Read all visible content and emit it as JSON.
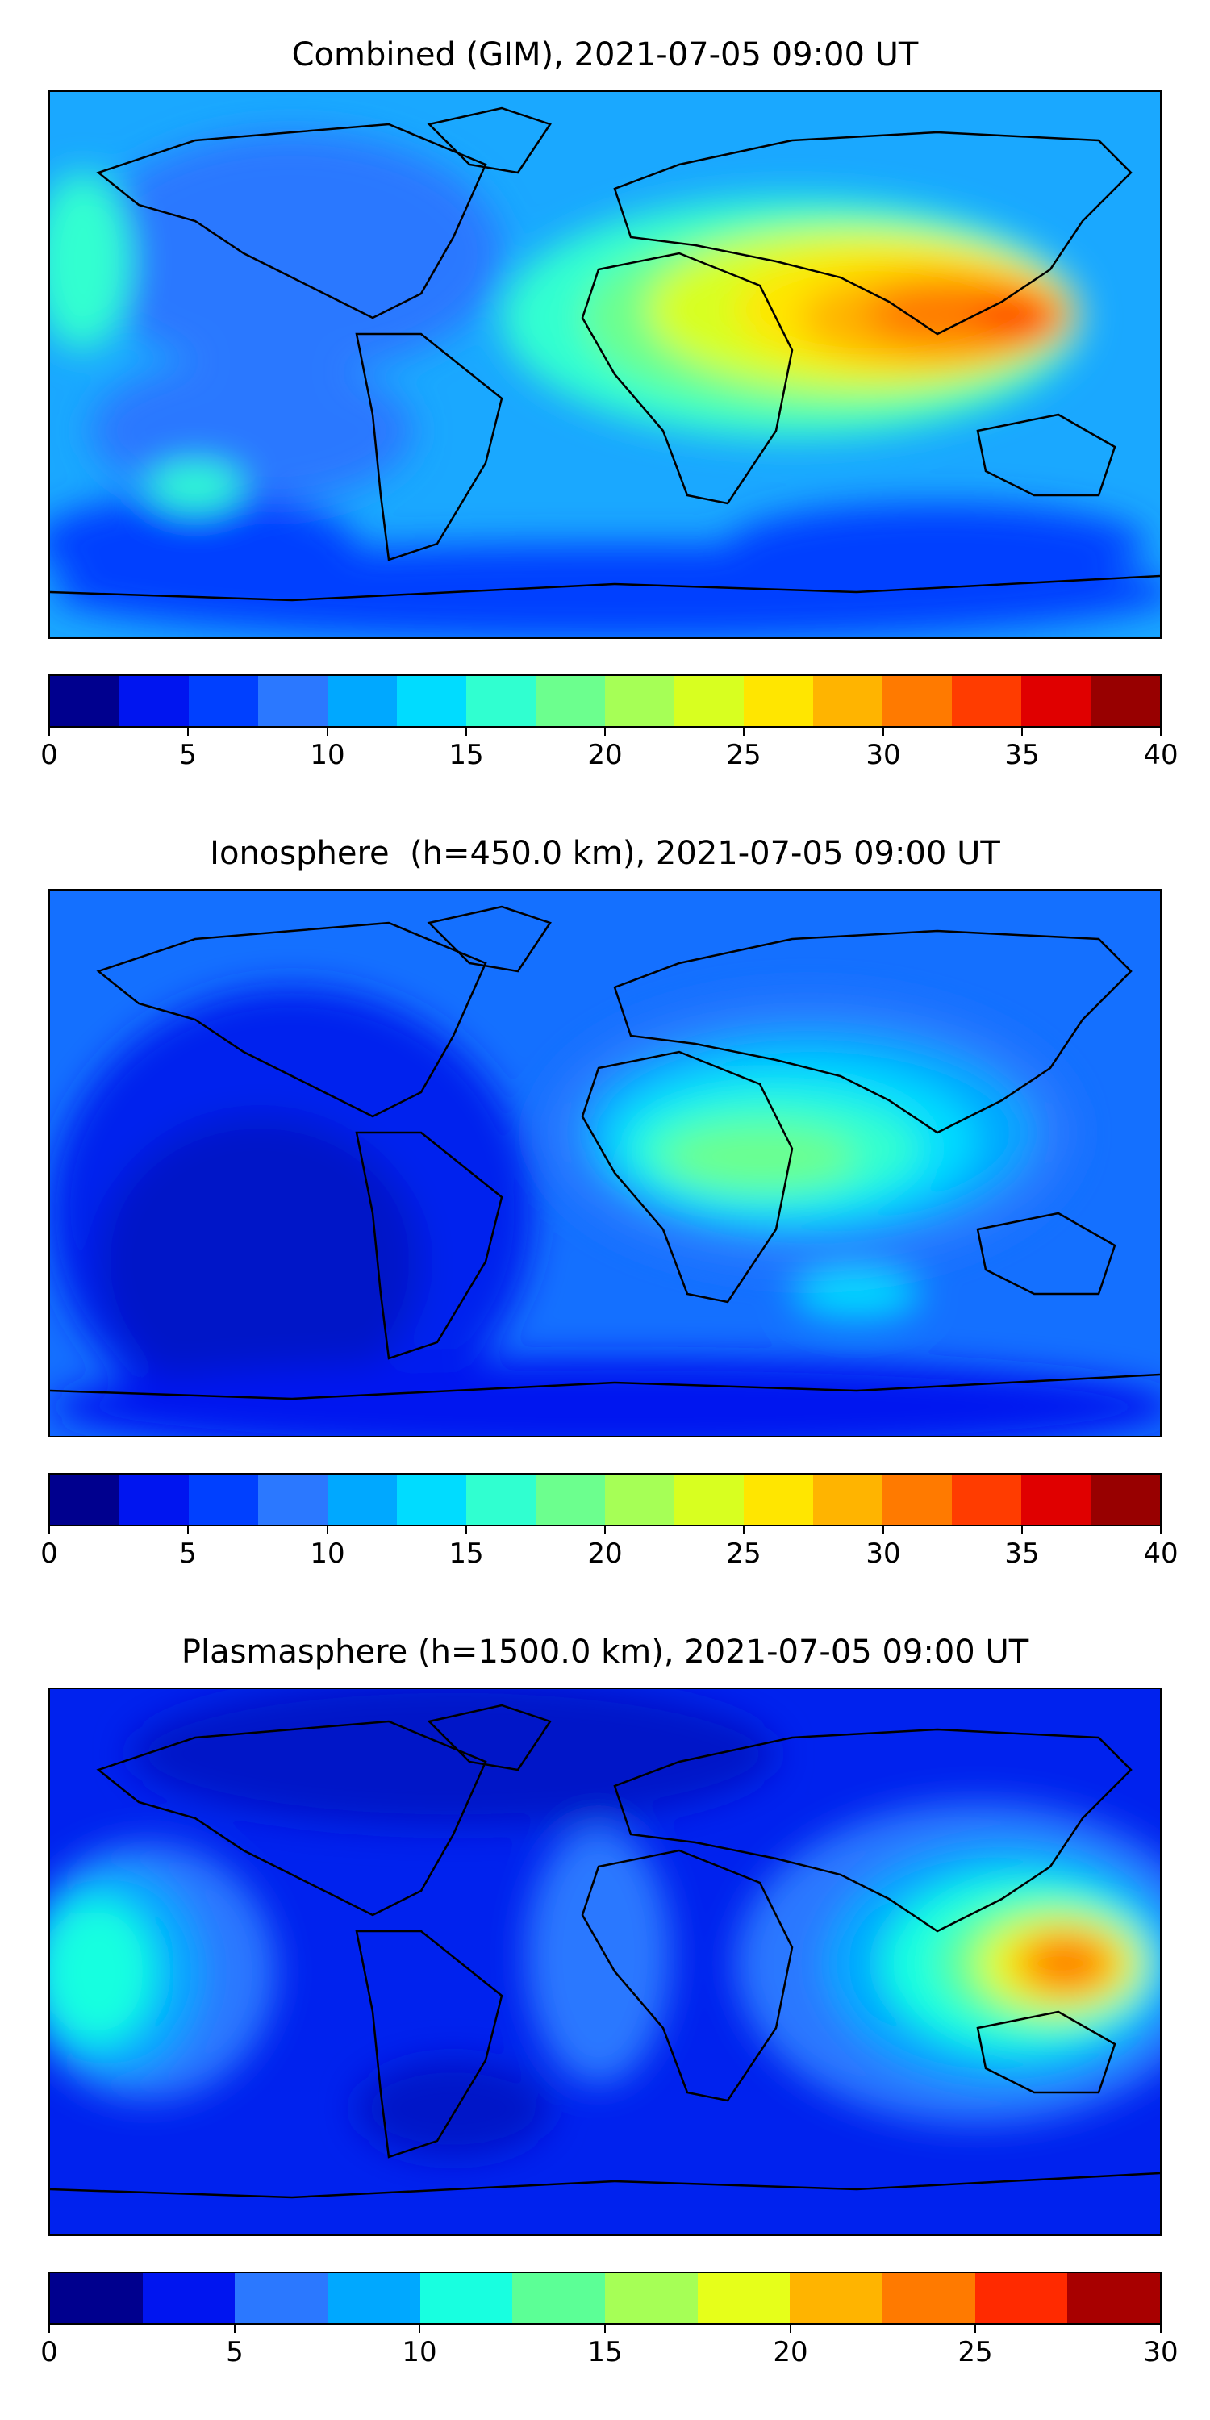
{
  "panels": [
    {
      "title": "Combined (GIM), 2021-07-05 09:00 UT",
      "background": "#1aa8ff",
      "colorbar": {
        "colors": [
          "#00008e",
          "#0015f0",
          "#0040ff",
          "#2b78ff",
          "#00a8ff",
          "#00dcff",
          "#30ffd0",
          "#6cff8e",
          "#a6ff56",
          "#d8ff20",
          "#ffe600",
          "#ffb400",
          "#ff7a00",
          "#ff3c00",
          "#e00000",
          "#980000"
        ],
        "ticks": [
          "0",
          "5",
          "10",
          "15",
          "20",
          "25",
          "30",
          "35",
          "40"
        ],
        "range": [
          0,
          40
        ]
      }
    },
    {
      "title": "Ionosphere  (h=450.0 km), 2021-07-05 09:00 UT",
      "background": "#1470ff",
      "colorbar": {
        "colors": [
          "#00008e",
          "#0015f0",
          "#0040ff",
          "#2b78ff",
          "#00a8ff",
          "#00dcff",
          "#30ffd0",
          "#6cff8e",
          "#a6ff56",
          "#d8ff20",
          "#ffe600",
          "#ffb400",
          "#ff7a00",
          "#ff3c00",
          "#e00000",
          "#980000"
        ],
        "ticks": [
          "0",
          "5",
          "10",
          "15",
          "20",
          "25",
          "30",
          "35",
          "40"
        ],
        "range": [
          0,
          40
        ]
      }
    },
    {
      "title": "Plasmasphere (h=1500.0 km), 2021-07-05 09:00 UT",
      "background": "#0022ee",
      "colorbar": {
        "colors": [
          "#00008e",
          "#0015f0",
          "#2b78ff",
          "#00a8ff",
          "#18ffe0",
          "#5cff96",
          "#a6ff56",
          "#e6ff1a",
          "#ffb400",
          "#ff7a00",
          "#ff2a00",
          "#a80000"
        ],
        "ticks": [
          "0",
          "5",
          "10",
          "15",
          "20",
          "25",
          "30"
        ],
        "range": [
          0,
          30
        ]
      }
    }
  ]
}
